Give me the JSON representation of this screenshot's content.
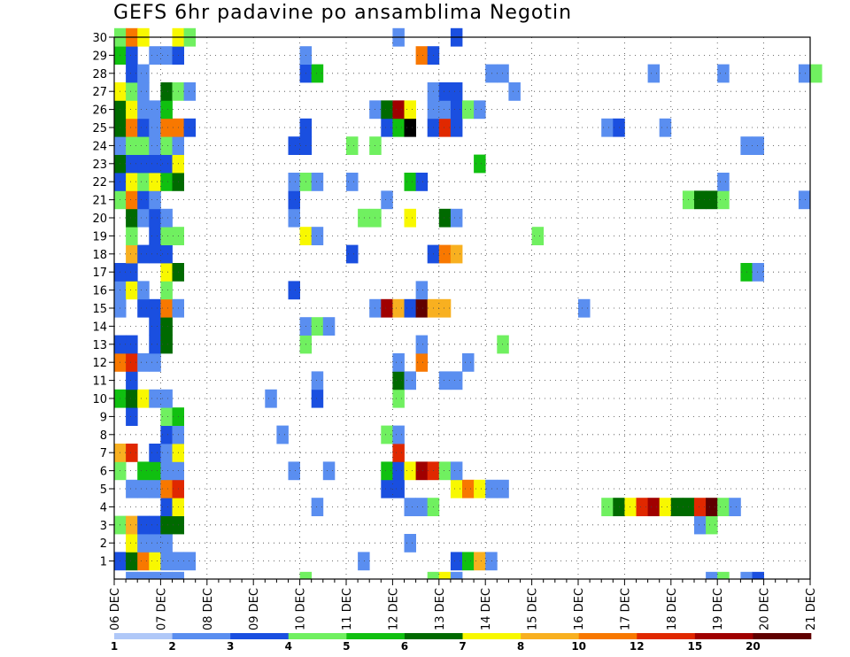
{
  "chart_data": {
    "type": "heatmap",
    "title": "GEFS 6hr padavine po ansamblima Negotin",
    "x_ticks": [
      "06 DEC",
      "07 DEC",
      "08 DEC",
      "09 DEC",
      "10 DEC",
      "11 DEC",
      "12 DEC",
      "13 DEC",
      "14 DEC",
      "15 DEC",
      "16 DEC",
      "17 DEC",
      "18 DEC",
      "19 DEC",
      "20 DEC",
      "21 DEC"
    ],
    "y_ticks": [
      "1",
      "2",
      "3",
      "4",
      "5",
      "6",
      "7",
      "8",
      "9",
      "10",
      "11",
      "12",
      "13",
      "14",
      "15",
      "16",
      "17",
      "18",
      "19",
      "20",
      "21",
      "22",
      "23",
      "24",
      "25",
      "26",
      "27",
      "28",
      "29",
      "30"
    ],
    "y_range": [
      0,
      30
    ],
    "x_range_steps": [
      0,
      60
    ],
    "grid": true,
    "legend": {
      "position": "bottom",
      "labels": [
        "1",
        "2",
        "3",
        "4",
        "5",
        "6",
        "7",
        "8",
        "10",
        "12",
        "15",
        "20"
      ],
      "colors": [
        "#b0c8f8",
        "#5a8ef0",
        "#1a4fe0",
        "#70f060",
        "#10c010",
        "#006a00",
        "#f8f800",
        "#f8b020",
        "#f87800",
        "#e02800",
        "#a00000",
        "#600000"
      ]
    },
    "cells": [
      [
        1,
        0,
        2
      ],
      [
        1,
        1,
        5
      ],
      [
        1,
        2,
        8
      ],
      [
        1,
        3,
        6
      ],
      [
        1,
        4,
        1
      ],
      [
        1,
        5,
        1
      ],
      [
        1,
        6,
        1
      ],
      [
        1,
        21,
        1
      ],
      [
        1,
        29,
        2
      ],
      [
        1,
        30,
        4
      ],
      [
        1,
        31,
        7
      ],
      [
        1,
        32,
        1
      ],
      [
        2,
        1,
        6
      ],
      [
        2,
        2,
        1
      ],
      [
        2,
        3,
        1
      ],
      [
        2,
        4,
        1
      ],
      [
        2,
        25,
        1
      ],
      [
        3,
        0,
        3
      ],
      [
        3,
        1,
        7
      ],
      [
        3,
        2,
        2
      ],
      [
        3,
        3,
        2
      ],
      [
        3,
        4,
        5
      ],
      [
        3,
        5,
        5
      ],
      [
        3,
        50,
        1
      ],
      [
        3,
        51,
        3
      ],
      [
        4,
        4,
        2
      ],
      [
        4,
        5,
        6
      ],
      [
        4,
        17,
        1
      ],
      [
        4,
        25,
        1
      ],
      [
        4,
        26,
        1
      ],
      [
        4,
        27,
        3
      ],
      [
        4,
        42,
        3
      ],
      [
        4,
        43,
        5
      ],
      [
        4,
        44,
        6
      ],
      [
        4,
        45,
        9
      ],
      [
        4,
        46,
        10
      ],
      [
        4,
        47,
        6
      ],
      [
        4,
        48,
        5
      ],
      [
        4,
        49,
        5
      ],
      [
        4,
        50,
        9
      ],
      [
        4,
        51,
        11
      ],
      [
        4,
        52,
        3
      ],
      [
        4,
        53,
        1
      ],
      [
        5,
        1,
        1
      ],
      [
        5,
        2,
        1
      ],
      [
        5,
        3,
        1
      ],
      [
        5,
        4,
        8
      ],
      [
        5,
        5,
        9
      ],
      [
        5,
        23,
        2
      ],
      [
        5,
        24,
        2
      ],
      [
        5,
        29,
        6
      ],
      [
        5,
        30,
        8
      ],
      [
        5,
        31,
        6
      ],
      [
        5,
        32,
        1
      ],
      [
        5,
        33,
        1
      ],
      [
        6,
        0,
        3
      ],
      [
        6,
        2,
        4
      ],
      [
        6,
        3,
        4
      ],
      [
        6,
        4,
        1
      ],
      [
        6,
        5,
        1
      ],
      [
        6,
        15,
        1
      ],
      [
        6,
        18,
        1
      ],
      [
        6,
        23,
        4
      ],
      [
        6,
        24,
        2
      ],
      [
        6,
        25,
        6
      ],
      [
        6,
        26,
        10
      ],
      [
        6,
        27,
        9
      ],
      [
        6,
        28,
        3
      ],
      [
        6,
        29,
        1
      ],
      [
        7,
        0,
        7
      ],
      [
        7,
        1,
        9
      ],
      [
        7,
        3,
        2
      ],
      [
        7,
        4,
        1
      ],
      [
        7,
        5,
        6
      ],
      [
        7,
        24,
        9
      ],
      [
        8,
        4,
        2
      ],
      [
        8,
        5,
        1
      ],
      [
        8,
        14,
        1
      ],
      [
        8,
        23,
        3
      ],
      [
        8,
        24,
        1
      ],
      [
        9,
        1,
        2
      ],
      [
        9,
        4,
        3
      ],
      [
        9,
        5,
        4
      ],
      [
        10,
        0,
        4
      ],
      [
        10,
        1,
        5
      ],
      [
        10,
        2,
        6
      ],
      [
        10,
        3,
        1
      ],
      [
        10,
        4,
        1
      ],
      [
        10,
        13,
        1
      ],
      [
        10,
        17,
        2
      ],
      [
        10,
        24,
        3
      ],
      [
        11,
        1,
        2
      ],
      [
        11,
        17,
        1
      ],
      [
        11,
        24,
        5
      ],
      [
        11,
        25,
        1
      ],
      [
        11,
        28,
        1
      ],
      [
        11,
        29,
        1
      ],
      [
        12,
        0,
        8
      ],
      [
        12,
        1,
        9
      ],
      [
        12,
        2,
        1
      ],
      [
        12,
        3,
        1
      ],
      [
        12,
        24,
        1
      ],
      [
        12,
        26,
        8
      ],
      [
        12,
        30,
        1
      ],
      [
        13,
        0,
        2
      ],
      [
        13,
        1,
        2
      ],
      [
        13,
        3,
        2
      ],
      [
        13,
        4,
        5
      ],
      [
        13,
        16,
        3
      ],
      [
        13,
        26,
        1
      ],
      [
        13,
        33,
        3
      ],
      [
        14,
        3,
        2
      ],
      [
        14,
        4,
        5
      ],
      [
        14,
        16,
        1
      ],
      [
        14,
        17,
        3
      ],
      [
        14,
        18,
        1
      ],
      [
        15,
        0,
        1
      ],
      [
        15,
        2,
        2
      ],
      [
        15,
        3,
        2
      ],
      [
        15,
        4,
        8
      ],
      [
        15,
        5,
        1
      ],
      [
        15,
        22,
        1
      ],
      [
        15,
        23,
        10
      ],
      [
        15,
        24,
        7
      ],
      [
        15,
        25,
        2
      ],
      [
        15,
        26,
        11
      ],
      [
        15,
        27,
        7
      ],
      [
        15,
        28,
        7
      ],
      [
        15,
        40,
        1
      ],
      [
        16,
        0,
        1
      ],
      [
        16,
        1,
        6
      ],
      [
        16,
        2,
        1
      ],
      [
        16,
        4,
        3
      ],
      [
        16,
        15,
        2
      ],
      [
        16,
        26,
        1
      ],
      [
        17,
        0,
        2
      ],
      [
        17,
        1,
        2
      ],
      [
        17,
        4,
        6
      ],
      [
        17,
        5,
        5
      ],
      [
        17,
        54,
        4
      ],
      [
        17,
        55,
        1
      ],
      [
        18,
        1,
        7
      ],
      [
        18,
        2,
        2
      ],
      [
        18,
        3,
        2
      ],
      [
        18,
        4,
        2
      ],
      [
        18,
        20,
        2
      ],
      [
        18,
        27,
        2
      ],
      [
        18,
        28,
        8
      ],
      [
        18,
        29,
        7
      ],
      [
        19,
        1,
        3
      ],
      [
        19,
        3,
        2
      ],
      [
        19,
        4,
        3
      ],
      [
        19,
        5,
        3
      ],
      [
        19,
        16,
        6
      ],
      [
        19,
        17,
        1
      ],
      [
        19,
        36,
        3
      ],
      [
        20,
        1,
        5
      ],
      [
        20,
        2,
        1
      ],
      [
        20,
        3,
        2
      ],
      [
        20,
        4,
        1
      ],
      [
        20,
        15,
        1
      ],
      [
        20,
        21,
        3
      ],
      [
        20,
        22,
        3
      ],
      [
        20,
        25,
        6
      ],
      [
        20,
        28,
        5
      ],
      [
        20,
        29,
        1
      ],
      [
        21,
        0,
        3
      ],
      [
        21,
        1,
        8
      ],
      [
        21,
        2,
        2
      ],
      [
        21,
        3,
        1
      ],
      [
        21,
        15,
        2
      ],
      [
        21,
        23,
        1
      ],
      [
        21,
        49,
        3
      ],
      [
        21,
        50,
        5
      ],
      [
        21,
        51,
        5
      ],
      [
        21,
        52,
        3
      ],
      [
        21,
        59,
        1
      ],
      [
        22,
        0,
        2
      ],
      [
        22,
        1,
        6
      ],
      [
        22,
        2,
        3
      ],
      [
        22,
        3,
        6
      ],
      [
        22,
        4,
        4
      ],
      [
        22,
        5,
        5
      ],
      [
        22,
        15,
        1
      ],
      [
        22,
        16,
        3
      ],
      [
        22,
        17,
        1
      ],
      [
        22,
        20,
        1
      ],
      [
        22,
        25,
        4
      ],
      [
        22,
        26,
        2
      ],
      [
        22,
        52,
        1
      ],
      [
        23,
        0,
        5
      ],
      [
        23,
        1,
        2
      ],
      [
        23,
        2,
        2
      ],
      [
        23,
        3,
        2
      ],
      [
        23,
        4,
        2
      ],
      [
        23,
        5,
        6
      ],
      [
        23,
        31,
        4
      ],
      [
        24,
        0,
        1
      ],
      [
        24,
        1,
        3
      ],
      [
        24,
        2,
        3
      ],
      [
        24,
        3,
        1
      ],
      [
        24,
        4,
        3
      ],
      [
        24,
        5,
        1
      ],
      [
        24,
        15,
        2
      ],
      [
        24,
        16,
        2
      ],
      [
        24,
        20,
        3
      ],
      [
        24,
        22,
        3
      ],
      [
        24,
        54,
        1
      ],
      [
        24,
        55,
        1
      ],
      [
        25,
        0,
        5
      ],
      [
        25,
        1,
        8
      ],
      [
        25,
        2,
        2
      ],
      [
        25,
        3,
        1
      ],
      [
        25,
        4,
        8
      ],
      [
        25,
        5,
        8
      ],
      [
        25,
        6,
        2
      ],
      [
        25,
        16,
        2
      ],
      [
        25,
        23,
        2
      ],
      [
        25,
        24,
        4
      ],
      [
        25,
        25,
        12
      ],
      [
        25,
        27,
        2
      ],
      [
        25,
        28,
        9
      ],
      [
        25,
        29,
        2
      ],
      [
        25,
        42,
        1
      ],
      [
        25,
        43,
        2
      ],
      [
        25,
        47,
        1
      ],
      [
        26,
        0,
        5
      ],
      [
        26,
        1,
        6
      ],
      [
        26,
        2,
        1
      ],
      [
        26,
        3,
        1
      ],
      [
        26,
        4,
        4
      ],
      [
        26,
        22,
        1
      ],
      [
        26,
        23,
        5
      ],
      [
        26,
        24,
        10
      ],
      [
        26,
        25,
        6
      ],
      [
        26,
        27,
        1
      ],
      [
        26,
        28,
        1
      ],
      [
        26,
        29,
        2
      ],
      [
        26,
        30,
        3
      ],
      [
        26,
        31,
        1
      ],
      [
        27,
        0,
        6
      ],
      [
        27,
        1,
        3
      ],
      [
        27,
        2,
        1
      ],
      [
        27,
        4,
        5
      ],
      [
        27,
        5,
        3
      ],
      [
        27,
        6,
        1
      ],
      [
        27,
        27,
        1
      ],
      [
        27,
        28,
        2
      ],
      [
        27,
        29,
        2
      ],
      [
        27,
        34,
        1
      ],
      [
        28,
        1,
        2
      ],
      [
        28,
        2,
        1
      ],
      [
        28,
        16,
        2
      ],
      [
        28,
        17,
        4
      ],
      [
        28,
        32,
        1
      ],
      [
        28,
        33,
        1
      ],
      [
        28,
        46,
        1
      ],
      [
        28,
        52,
        1
      ],
      [
        28,
        59,
        1
      ],
      [
        28,
        60,
        3
      ],
      [
        29,
        0,
        4
      ],
      [
        29,
        1,
        2
      ],
      [
        29,
        3,
        1
      ],
      [
        29,
        4,
        1
      ],
      [
        29,
        5,
        2
      ],
      [
        29,
        16,
        1
      ],
      [
        29,
        26,
        8
      ],
      [
        29,
        27,
        2
      ],
      [
        30,
        0,
        3
      ],
      [
        30,
        1,
        8
      ],
      [
        30,
        2,
        6
      ],
      [
        30,
        5,
        6
      ],
      [
        30,
        6,
        3
      ],
      [
        30,
        24,
        1
      ],
      [
        30,
        29,
        2
      ],
      [
        0,
        1,
        1
      ],
      [
        0,
        2,
        1
      ],
      [
        0,
        3,
        1
      ],
      [
        0,
        4,
        1
      ],
      [
        0,
        5,
        1
      ],
      [
        0,
        16,
        3
      ],
      [
        0,
        27,
        3
      ],
      [
        0,
        28,
        6
      ],
      [
        0,
        29,
        1
      ],
      [
        0,
        51,
        1
      ],
      [
        0,
        52,
        3
      ],
      [
        0,
        54,
        1
      ],
      [
        0,
        55,
        2
      ]
    ]
  }
}
